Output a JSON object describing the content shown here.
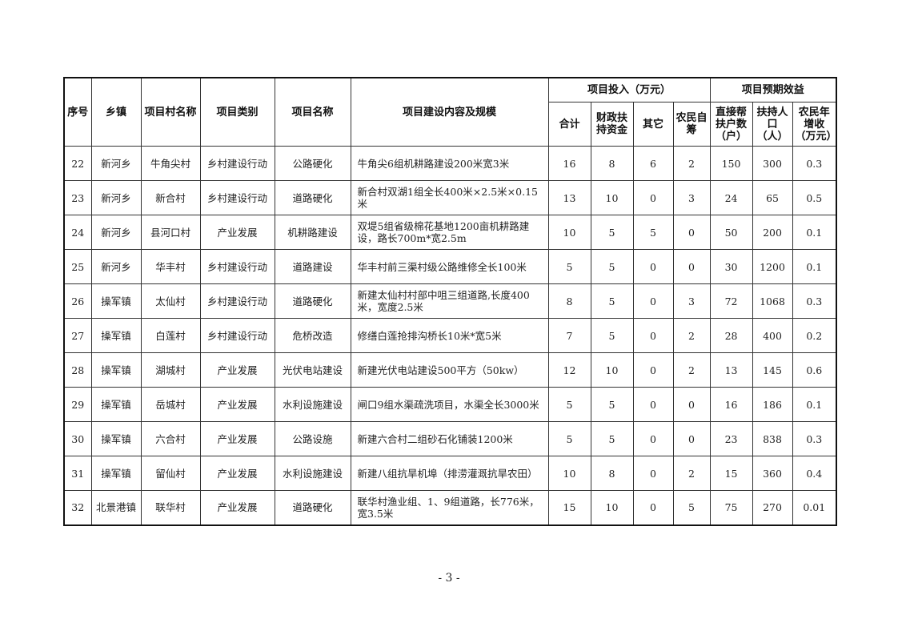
{
  "table": {
    "headers": {
      "seq": "序号",
      "town": "乡镇",
      "village": "项目村名称",
      "category": "项目类别",
      "project": "项目名称",
      "content": "项目建设内容及规模",
      "investment_group": "项目投入（万元）",
      "benefit_group": "项目预期效益",
      "total": "合计",
      "fiscal": "财政扶持资金",
      "other": "其它",
      "farmer_self": "农民自筹",
      "households": "直接帮扶户数（户）",
      "population": "扶持人口（人）",
      "income": "农民年增收（万元）"
    },
    "rows": [
      [
        "22",
        "新河乡",
        "牛角尖村",
        "乡村建设行动",
        "公路硬化",
        "牛角尖6组机耕路建设200米宽3米",
        "16",
        "8",
        "6",
        "2",
        "150",
        "300",
        "0.3"
      ],
      [
        "23",
        "新河乡",
        "新合村",
        "乡村建设行动",
        "道路硬化",
        "新合村双湖1组全长400米×2.5米×0.15米",
        "13",
        "10",
        "0",
        "3",
        "24",
        "65",
        "0.5"
      ],
      [
        "24",
        "新河乡",
        "县河口村",
        "产业发展",
        "机耕路建设",
        "双堤5组省级棉花基地1200亩机耕路建设，路长700m*宽2.5m",
        "10",
        "5",
        "5",
        "0",
        "50",
        "200",
        "0.1"
      ],
      [
        "25",
        "新河乡",
        "华丰村",
        "乡村建设行动",
        "道路建设",
        "华丰村前三渠村级公路维修全长100米",
        "5",
        "5",
        "0",
        "0",
        "30",
        "1200",
        "0.1"
      ],
      [
        "26",
        "操军镇",
        "太仙村",
        "乡村建设行动",
        "道路硬化",
        "新建太仙村村部中咀三组道路,长度400米，宽度2.5米",
        "8",
        "5",
        "0",
        "3",
        "72",
        "1068",
        "0.3"
      ],
      [
        "27",
        "操军镇",
        "白莲村",
        "乡村建设行动",
        "危桥改造",
        "修缮白莲抢排沟桥长10米*宽5米",
        "7",
        "5",
        "0",
        "2",
        "28",
        "400",
        "0.2"
      ],
      [
        "28",
        "操军镇",
        "湖城村",
        "产业发展",
        "光伏电站建设",
        "新建光伏电站建设500平方（50kw）",
        "12",
        "10",
        "0",
        "2",
        "13",
        "145",
        "0.6"
      ],
      [
        "29",
        "操军镇",
        "岳城村",
        "产业发展",
        "水利设施建设",
        "闸口9组水渠疏洗项目，水渠全长3000米",
        "5",
        "5",
        "0",
        "0",
        "16",
        "186",
        "0.1"
      ],
      [
        "30",
        "操军镇",
        "六合村",
        "产业发展",
        "公路设施",
        "新建六合村二组砂石化铺装1200米",
        "5",
        "5",
        "0",
        "0",
        "23",
        "838",
        "0.3"
      ],
      [
        "31",
        "操军镇",
        "留仙村",
        "产业发展",
        "水利设施建设",
        "新建八组抗旱机埠（排涝灌溉抗旱农田）",
        "10",
        "8",
        "0",
        "2",
        "15",
        "360",
        "0.4"
      ],
      [
        "32",
        "北景港镇",
        "联华村",
        "产业发展",
        "道路硬化",
        "联华村渔业组、1、9组道路，长776米，宽3.5米",
        "15",
        "10",
        "0",
        "5",
        "75",
        "270",
        "0.01"
      ]
    ]
  },
  "page_number": "- 3 -"
}
